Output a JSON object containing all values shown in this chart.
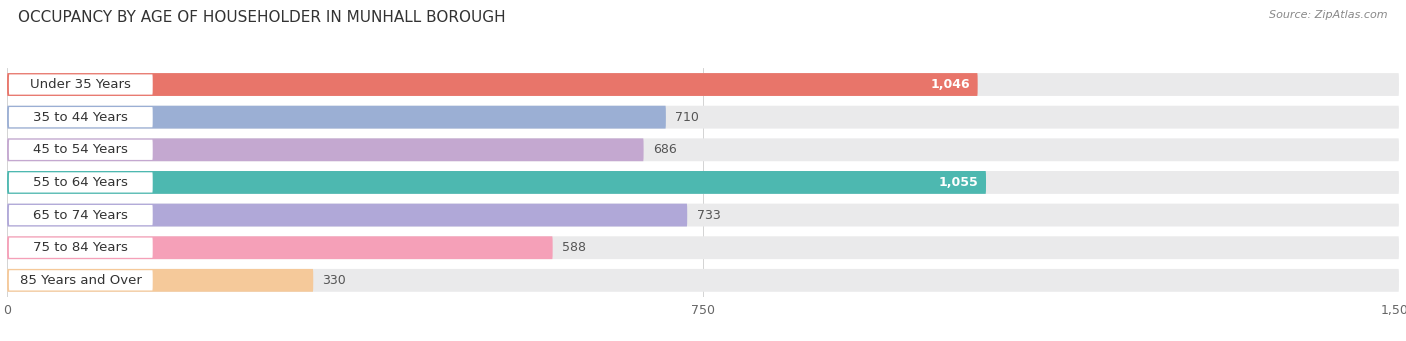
{
  "title": "OCCUPANCY BY AGE OF HOUSEHOLDER IN MUNHALL BOROUGH",
  "source": "Source: ZipAtlas.com",
  "categories": [
    "Under 35 Years",
    "35 to 44 Years",
    "45 to 54 Years",
    "55 to 64 Years",
    "65 to 74 Years",
    "75 to 84 Years",
    "85 Years and Over"
  ],
  "values": [
    1046,
    710,
    686,
    1055,
    733,
    588,
    330
  ],
  "bar_colors": [
    "#E8756A",
    "#9BAFD4",
    "#C4A8D0",
    "#4DB8B0",
    "#B0A8D8",
    "#F5A0B8",
    "#F5C99A"
  ],
  "label_pill_colors": [
    "#E8756A",
    "#9BAFD4",
    "#C4A8D0",
    "#4DB8B0",
    "#B0A8D8",
    "#F5A0B8",
    "#F5C99A"
  ],
  "bar_bg_color": "#EAEAEB",
  "xlim": [
    0,
    1500
  ],
  "xticks": [
    0,
    750,
    1500
  ],
  "value_fontsize": 9,
  "label_fontsize": 9.5,
  "title_fontsize": 11,
  "background_color": "#FFFFFF"
}
